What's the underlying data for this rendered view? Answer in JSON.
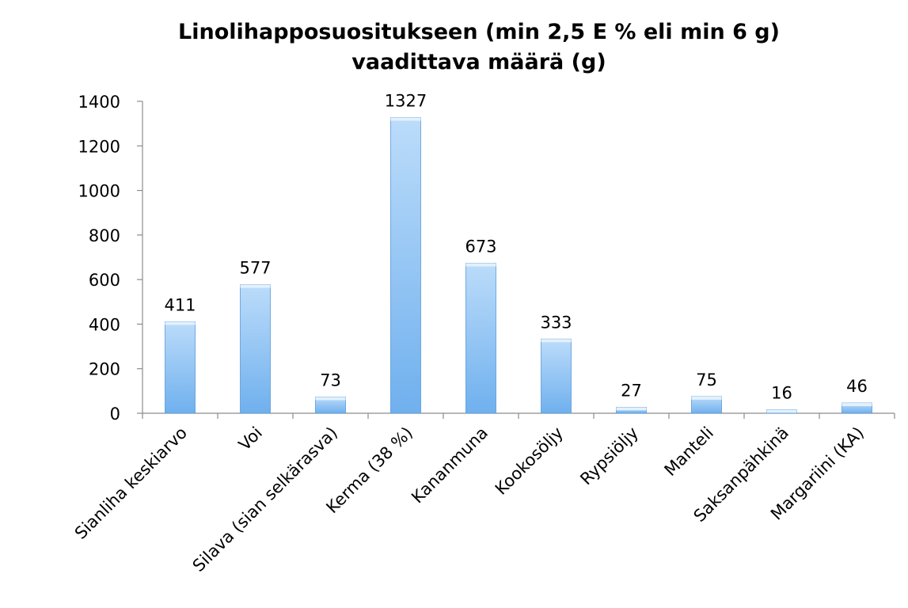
{
  "chart_data": {
    "type": "bar",
    "title_lines": [
      "Linolihapposuositukseen (min 2,5 E % eli min 6 g)",
      "vaadittava määrä (g)"
    ],
    "categories": [
      "Sianliha keskiarvo",
      "Voi",
      "Silava (sian selkärasva)",
      "Kerma (38 %)",
      "Kananmuna",
      "Kookosöljy",
      "Rypsiöljy",
      "Manteli",
      "Saksanpähkinä",
      "Margariini (KA)"
    ],
    "values": [
      411,
      577,
      73,
      1327,
      673,
      333,
      27,
      75,
      16,
      46
    ],
    "data_labels": [
      "411",
      "577",
      "73",
      "1327",
      "673",
      "333",
      "27",
      "75",
      "16",
      "46"
    ],
    "ylim": [
      0,
      1400
    ],
    "yticks": [
      0,
      200,
      400,
      600,
      800,
      1000,
      1200,
      1400
    ],
    "xlabel": "",
    "ylabel": "",
    "grid": false,
    "legend": "none",
    "bar_color": "#6fb0ee",
    "bar_color_light": "#bcdcfa"
  }
}
